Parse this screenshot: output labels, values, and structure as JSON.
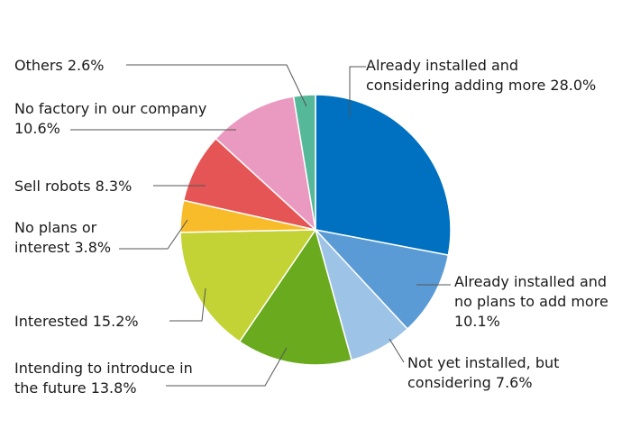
{
  "chart_data": {
    "type": "pie",
    "title": "",
    "start_angle_deg": 0,
    "direction": "clockwise",
    "slices": [
      {
        "name": "already-installed-adding",
        "lines": [
          "Already installed and",
          "considering adding more 28.0%"
        ],
        "value": 28.0,
        "color": "#0070c0"
      },
      {
        "name": "already-installed-no-plans",
        "lines": [
          "Already installed and",
          "no plans to add more",
          "10.1%"
        ],
        "value": 10.1,
        "color": "#5b9bd5"
      },
      {
        "name": "not-installed-considering",
        "lines": [
          "Not yet installed, but",
          "considering 7.6%"
        ],
        "value": 7.6,
        "color": "#9dc3e6"
      },
      {
        "name": "intending-introduce",
        "lines": [
          "Intending to introduce in",
          "the future 13.8%"
        ],
        "value": 13.8,
        "color": "#6aaa1e"
      },
      {
        "name": "interested",
        "lines": [
          "Interested 15.2%"
        ],
        "value": 15.2,
        "color": "#c3d234"
      },
      {
        "name": "no-plans-interest",
        "lines": [
          "No plans or",
          "interest 3.8%"
        ],
        "value": 3.8,
        "color": "#f8bb2a"
      },
      {
        "name": "sell-robots",
        "lines": [
          "Sell robots 8.3%"
        ],
        "value": 8.3,
        "color": "#e55555"
      },
      {
        "name": "no-factory",
        "lines": [
          "No factory in our company",
          "10.6%"
        ],
        "value": 10.6,
        "color": "#ea9ac0"
      },
      {
        "name": "others",
        "lines": [
          "Others 2.6%"
        ],
        "value": 2.6,
        "color": "#55b899"
      }
    ]
  }
}
